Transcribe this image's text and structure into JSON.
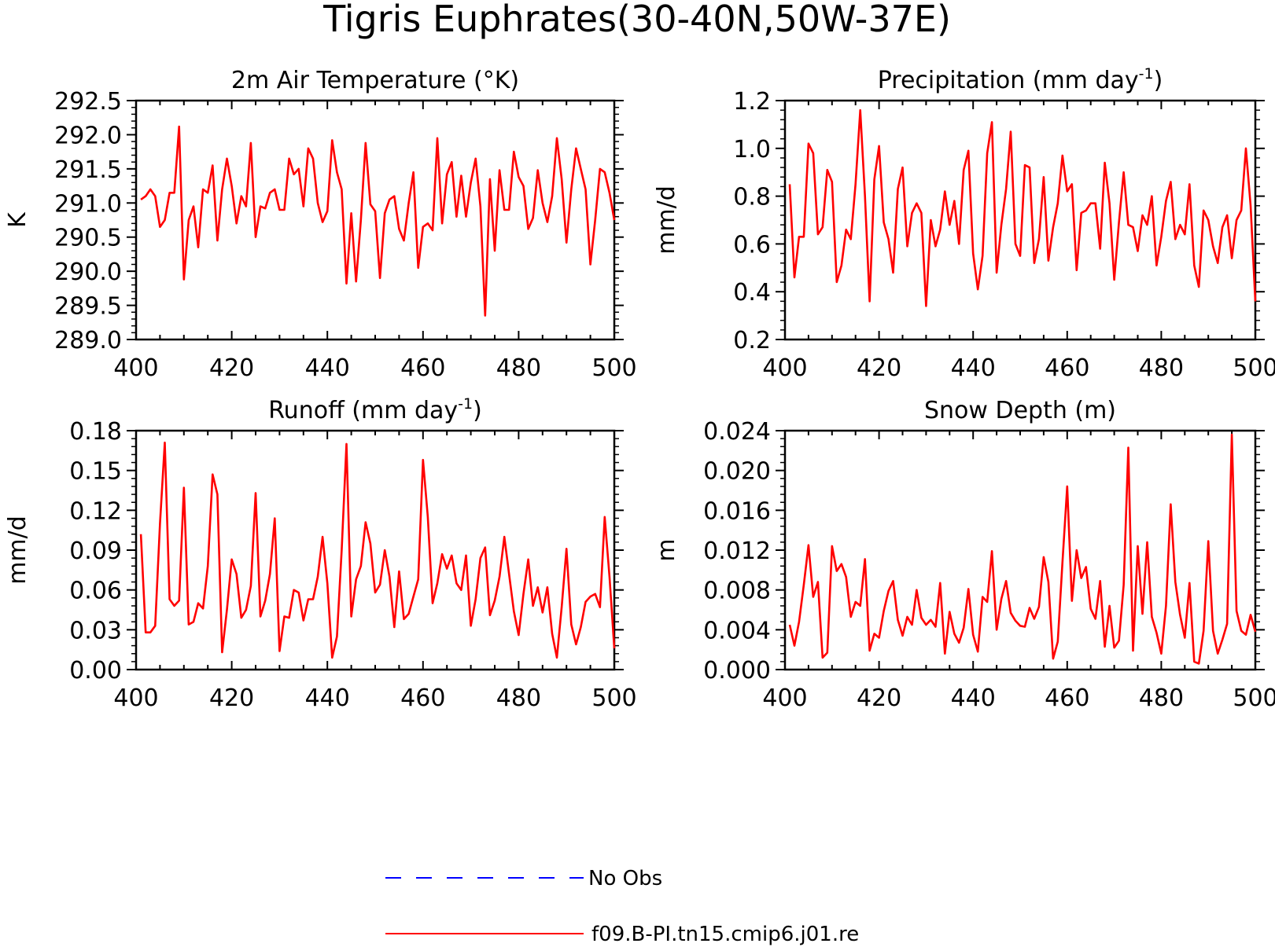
{
  "figure": {
    "title": "Tigris Euphrates(30-40N,50W-37E)",
    "line_color": "#ff0000",
    "obs_color": "#0000ff"
  },
  "legend": {
    "items": [
      {
        "label": "No Obs",
        "style": "dashed",
        "color": "#0000ff"
      },
      {
        "label": "f09.B-PI.tn15.cmip6.j01.re",
        "style": "solid",
        "color": "#ff0000"
      }
    ]
  },
  "chart_data": [
    {
      "type": "line",
      "title": "2m Air Temperature (°K)",
      "title_main": "2m Air Temperature (°K)",
      "title_sup": "",
      "title_tail": "",
      "ylabel": "K",
      "xlim": [
        400,
        500
      ],
      "ylim": [
        289.0,
        292.5
      ],
      "xticks": [
        400,
        420,
        440,
        460,
        480,
        500
      ],
      "yticks": [
        "289.0",
        "289.5",
        "290.0",
        "290.5",
        "291.0",
        "291.5",
        "292.0",
        "292.5"
      ],
      "ytick_values": [
        289.0,
        289.5,
        290.0,
        290.5,
        291.0,
        291.5,
        292.0,
        292.5
      ],
      "series": [
        {
          "x_start": 401,
          "values": [
            291.05,
            291.1,
            291.2,
            291.1,
            290.65,
            290.75,
            291.15,
            291.15,
            292.12,
            289.88,
            290.75,
            290.95,
            290.35,
            291.2,
            291.15,
            291.55,
            290.45,
            291.2,
            291.65,
            291.25,
            290.7,
            291.1,
            290.95,
            291.88,
            290.5,
            290.95,
            290.92,
            291.15,
            291.2,
            290.9,
            290.9,
            291.65,
            291.42,
            291.5,
            290.95,
            291.8,
            291.65,
            291.0,
            290.72,
            290.88,
            291.92,
            291.45,
            291.2,
            289.82,
            290.85,
            289.85,
            290.75,
            291.88,
            290.98,
            290.88,
            289.9,
            290.85,
            291.05,
            291.1,
            290.62,
            290.45,
            291.0,
            291.45,
            290.05,
            290.65,
            290.7,
            290.6,
            291.95,
            290.7,
            291.42,
            291.6,
            290.8,
            291.4,
            290.8,
            291.3,
            291.65,
            290.95,
            289.35,
            291.35,
            290.3,
            291.48,
            290.9,
            290.9,
            291.75,
            291.38,
            291.25,
            290.62,
            290.78,
            291.48,
            291.0,
            290.72,
            291.1,
            291.95,
            291.35,
            290.42,
            291.2,
            291.8,
            291.5,
            291.2,
            290.1,
            290.75,
            291.5,
            291.45,
            291.15,
            290.75
          ]
        }
      ]
    },
    {
      "type": "line",
      "title": "Precipitation (mm day-1)",
      "title_main": "Precipitation (mm day",
      "title_sup": "-1",
      "title_tail": ")",
      "ylabel": "mm/d",
      "xlim": [
        400,
        500
      ],
      "ylim": [
        0.2,
        1.2
      ],
      "xticks": [
        400,
        420,
        440,
        460,
        480,
        500
      ],
      "yticks": [
        "0.2",
        "0.4",
        "0.6",
        "0.8",
        "1.0",
        "1.2"
      ],
      "ytick_values": [
        0.2,
        0.4,
        0.6,
        0.8,
        1.0,
        1.2
      ],
      "series": [
        {
          "x_start": 401,
          "values": [
            0.85,
            0.46,
            0.63,
            0.63,
            1.02,
            0.98,
            0.64,
            0.67,
            0.91,
            0.86,
            0.44,
            0.51,
            0.66,
            0.62,
            0.85,
            1.16,
            0.8,
            0.36,
            0.87,
            1.01,
            0.69,
            0.62,
            0.48,
            0.83,
            0.92,
            0.59,
            0.73,
            0.77,
            0.73,
            0.34,
            0.7,
            0.59,
            0.66,
            0.82,
            0.68,
            0.78,
            0.6,
            0.91,
            0.99,
            0.56,
            0.41,
            0.55,
            0.98,
            1.11,
            0.48,
            0.68,
            0.83,
            1.07,
            0.6,
            0.55,
            0.93,
            0.92,
            0.52,
            0.62,
            0.88,
            0.53,
            0.67,
            0.77,
            0.97,
            0.82,
            0.85,
            0.49,
            0.73,
            0.74,
            0.77,
            0.77,
            0.58,
            0.94,
            0.77,
            0.45,
            0.69,
            0.9,
            0.68,
            0.67,
            0.57,
            0.72,
            0.68,
            0.8,
            0.51,
            0.63,
            0.78,
            0.86,
            0.62,
            0.68,
            0.64,
            0.85,
            0.51,
            0.42,
            0.74,
            0.7,
            0.59,
            0.52,
            0.67,
            0.72,
            0.54,
            0.7,
            0.74,
            1.0,
            0.76,
            0.36
          ]
        }
      ]
    },
    {
      "type": "line",
      "title": "Runoff (mm day-1)",
      "title_main": "Runoff (mm day",
      "title_sup": "-1",
      "title_tail": ")",
      "ylabel": "mm/d",
      "xlim": [
        400,
        500
      ],
      "ylim": [
        0.0,
        0.18
      ],
      "xticks": [
        400,
        420,
        440,
        460,
        480,
        500
      ],
      "yticks": [
        "0.00",
        "0.03",
        "0.06",
        "0.09",
        "0.12",
        "0.15",
        "0.18"
      ],
      "ytick_values": [
        0.0,
        0.03,
        0.06,
        0.09,
        0.12,
        0.15,
        0.18
      ],
      "series": [
        {
          "x_start": 401,
          "values": [
            0.102,
            0.028,
            0.028,
            0.033,
            0.11,
            0.171,
            0.053,
            0.048,
            0.052,
            0.137,
            0.034,
            0.036,
            0.05,
            0.046,
            0.078,
            0.147,
            0.132,
            0.013,
            0.045,
            0.083,
            0.072,
            0.039,
            0.045,
            0.063,
            0.133,
            0.04,
            0.052,
            0.072,
            0.114,
            0.014,
            0.04,
            0.039,
            0.06,
            0.058,
            0.037,
            0.053,
            0.053,
            0.07,
            0.1,
            0.065,
            0.009,
            0.025,
            0.09,
            0.17,
            0.04,
            0.068,
            0.078,
            0.111,
            0.095,
            0.058,
            0.064,
            0.09,
            0.07,
            0.032,
            0.074,
            0.038,
            0.042,
            0.055,
            0.068,
            0.158,
            0.115,
            0.05,
            0.065,
            0.087,
            0.076,
            0.086,
            0.065,
            0.06,
            0.086,
            0.033,
            0.053,
            0.084,
            0.092,
            0.041,
            0.052,
            0.07,
            0.1,
            0.072,
            0.044,
            0.026,
            0.057,
            0.083,
            0.048,
            0.062,
            0.043,
            0.062,
            0.027,
            0.009,
            0.047,
            0.091,
            0.034,
            0.019,
            0.032,
            0.051,
            0.055,
            0.057,
            0.047,
            0.115,
            0.07,
            0.016
          ]
        }
      ]
    },
    {
      "type": "line",
      "title": "Snow Depth (m)",
      "title_main": "Snow Depth (m)",
      "title_sup": "",
      "title_tail": "",
      "ylabel": "m",
      "xlim": [
        400,
        500
      ],
      "ylim": [
        0.0,
        0.024
      ],
      "xticks": [
        400,
        420,
        440,
        460,
        480,
        500
      ],
      "yticks": [
        "0.000",
        "0.004",
        "0.008",
        "0.012",
        "0.016",
        "0.020",
        "0.024"
      ],
      "ytick_values": [
        0.0,
        0.004,
        0.008,
        0.012,
        0.016,
        0.02,
        0.024
      ],
      "series": [
        {
          "x_start": 401,
          "values": [
            0.0045,
            0.0024,
            0.0048,
            0.0085,
            0.0125,
            0.0073,
            0.0088,
            0.0012,
            0.0017,
            0.0124,
            0.0099,
            0.0106,
            0.0093,
            0.0053,
            0.0068,
            0.0064,
            0.0111,
            0.0019,
            0.0036,
            0.0032,
            0.0059,
            0.0079,
            0.0089,
            0.005,
            0.0034,
            0.0053,
            0.0045,
            0.008,
            0.0052,
            0.0045,
            0.005,
            0.0043,
            0.0087,
            0.0016,
            0.0058,
            0.0036,
            0.0027,
            0.0042,
            0.0081,
            0.0035,
            0.0018,
            0.0073,
            0.0068,
            0.0119,
            0.004,
            0.0071,
            0.0089,
            0.0057,
            0.0049,
            0.0044,
            0.0043,
            0.0062,
            0.0051,
            0.0063,
            0.0113,
            0.0088,
            0.0011,
            0.0028,
            0.0108,
            0.0184,
            0.0069,
            0.012,
            0.0092,
            0.0103,
            0.0061,
            0.0051,
            0.0089,
            0.0023,
            0.0064,
            0.0022,
            0.0029,
            0.0085,
            0.0223,
            0.0019,
            0.0124,
            0.0056,
            0.0128,
            0.0053,
            0.0037,
            0.0016,
            0.0064,
            0.0166,
            0.0088,
            0.0055,
            0.0032,
            0.0087,
            0.0008,
            0.0006,
            0.0039,
            0.0129,
            0.0039,
            0.0016,
            0.003,
            0.0046,
            0.0236,
            0.0059,
            0.0039,
            0.0035,
            0.0055,
            0.0038
          ]
        }
      ]
    }
  ]
}
